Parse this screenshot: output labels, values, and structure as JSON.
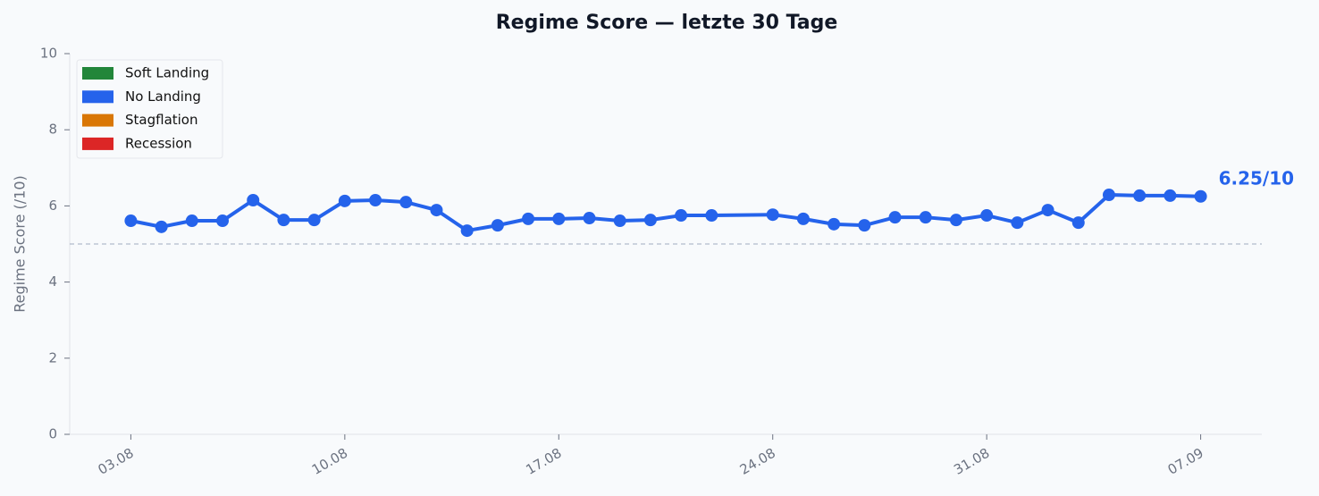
{
  "chart_data": {
    "type": "line",
    "title": "Regime Score — letzte 30 Tage",
    "y_label": "Regime Score (/10)",
    "x": [
      "03.08",
      "04.08",
      "05.08",
      "06.08",
      "07.08",
      "08.08",
      "09.08",
      "10.08",
      "11.08",
      "12.08",
      "13.08",
      "14.08",
      "15.08",
      "16.08",
      "17.08",
      "18.08",
      "19.08",
      "20.08",
      "21.08",
      "22.08",
      "24.08",
      "25.08",
      "26.08",
      "27.08",
      "28.08",
      "29.08",
      "30.08",
      "31.08",
      "01.09",
      "02.09",
      "03.09",
      "04.09",
      "05.09",
      "06.09",
      "07.09"
    ],
    "series": [
      {
        "name": "Regime Score",
        "color": "#2563eb",
        "values": [
          5.61,
          5.45,
          5.61,
          5.61,
          6.15,
          5.63,
          5.63,
          6.13,
          6.15,
          6.1,
          5.89,
          5.35,
          5.49,
          5.66,
          5.66,
          5.68,
          5.61,
          5.63,
          5.75,
          5.75,
          5.77,
          5.66,
          5.52,
          5.49,
          5.7,
          5.7,
          5.63,
          5.75,
          5.56,
          5.89,
          5.56,
          6.29,
          6.27,
          6.27,
          6.25
        ]
      }
    ],
    "xlim": [
      "01.08",
      "09.09"
    ],
    "xticks": [
      "03.08",
      "10.08",
      "17.08",
      "24.08",
      "31.08",
      "07.09"
    ],
    "ylim": [
      0,
      10
    ],
    "yticks": [
      0,
      2,
      4,
      6,
      8,
      10
    ],
    "reference_line": 5,
    "annotation": "6.25/10",
    "legend_position": "upper left",
    "legend": [
      {
        "label": "Soft Landing",
        "color": "#22863a"
      },
      {
        "label": "No Landing",
        "color": "#2563eb"
      },
      {
        "label": "Stagflation",
        "color": "#d97706"
      },
      {
        "label": "Recession",
        "color": "#dc2626"
      }
    ]
  }
}
